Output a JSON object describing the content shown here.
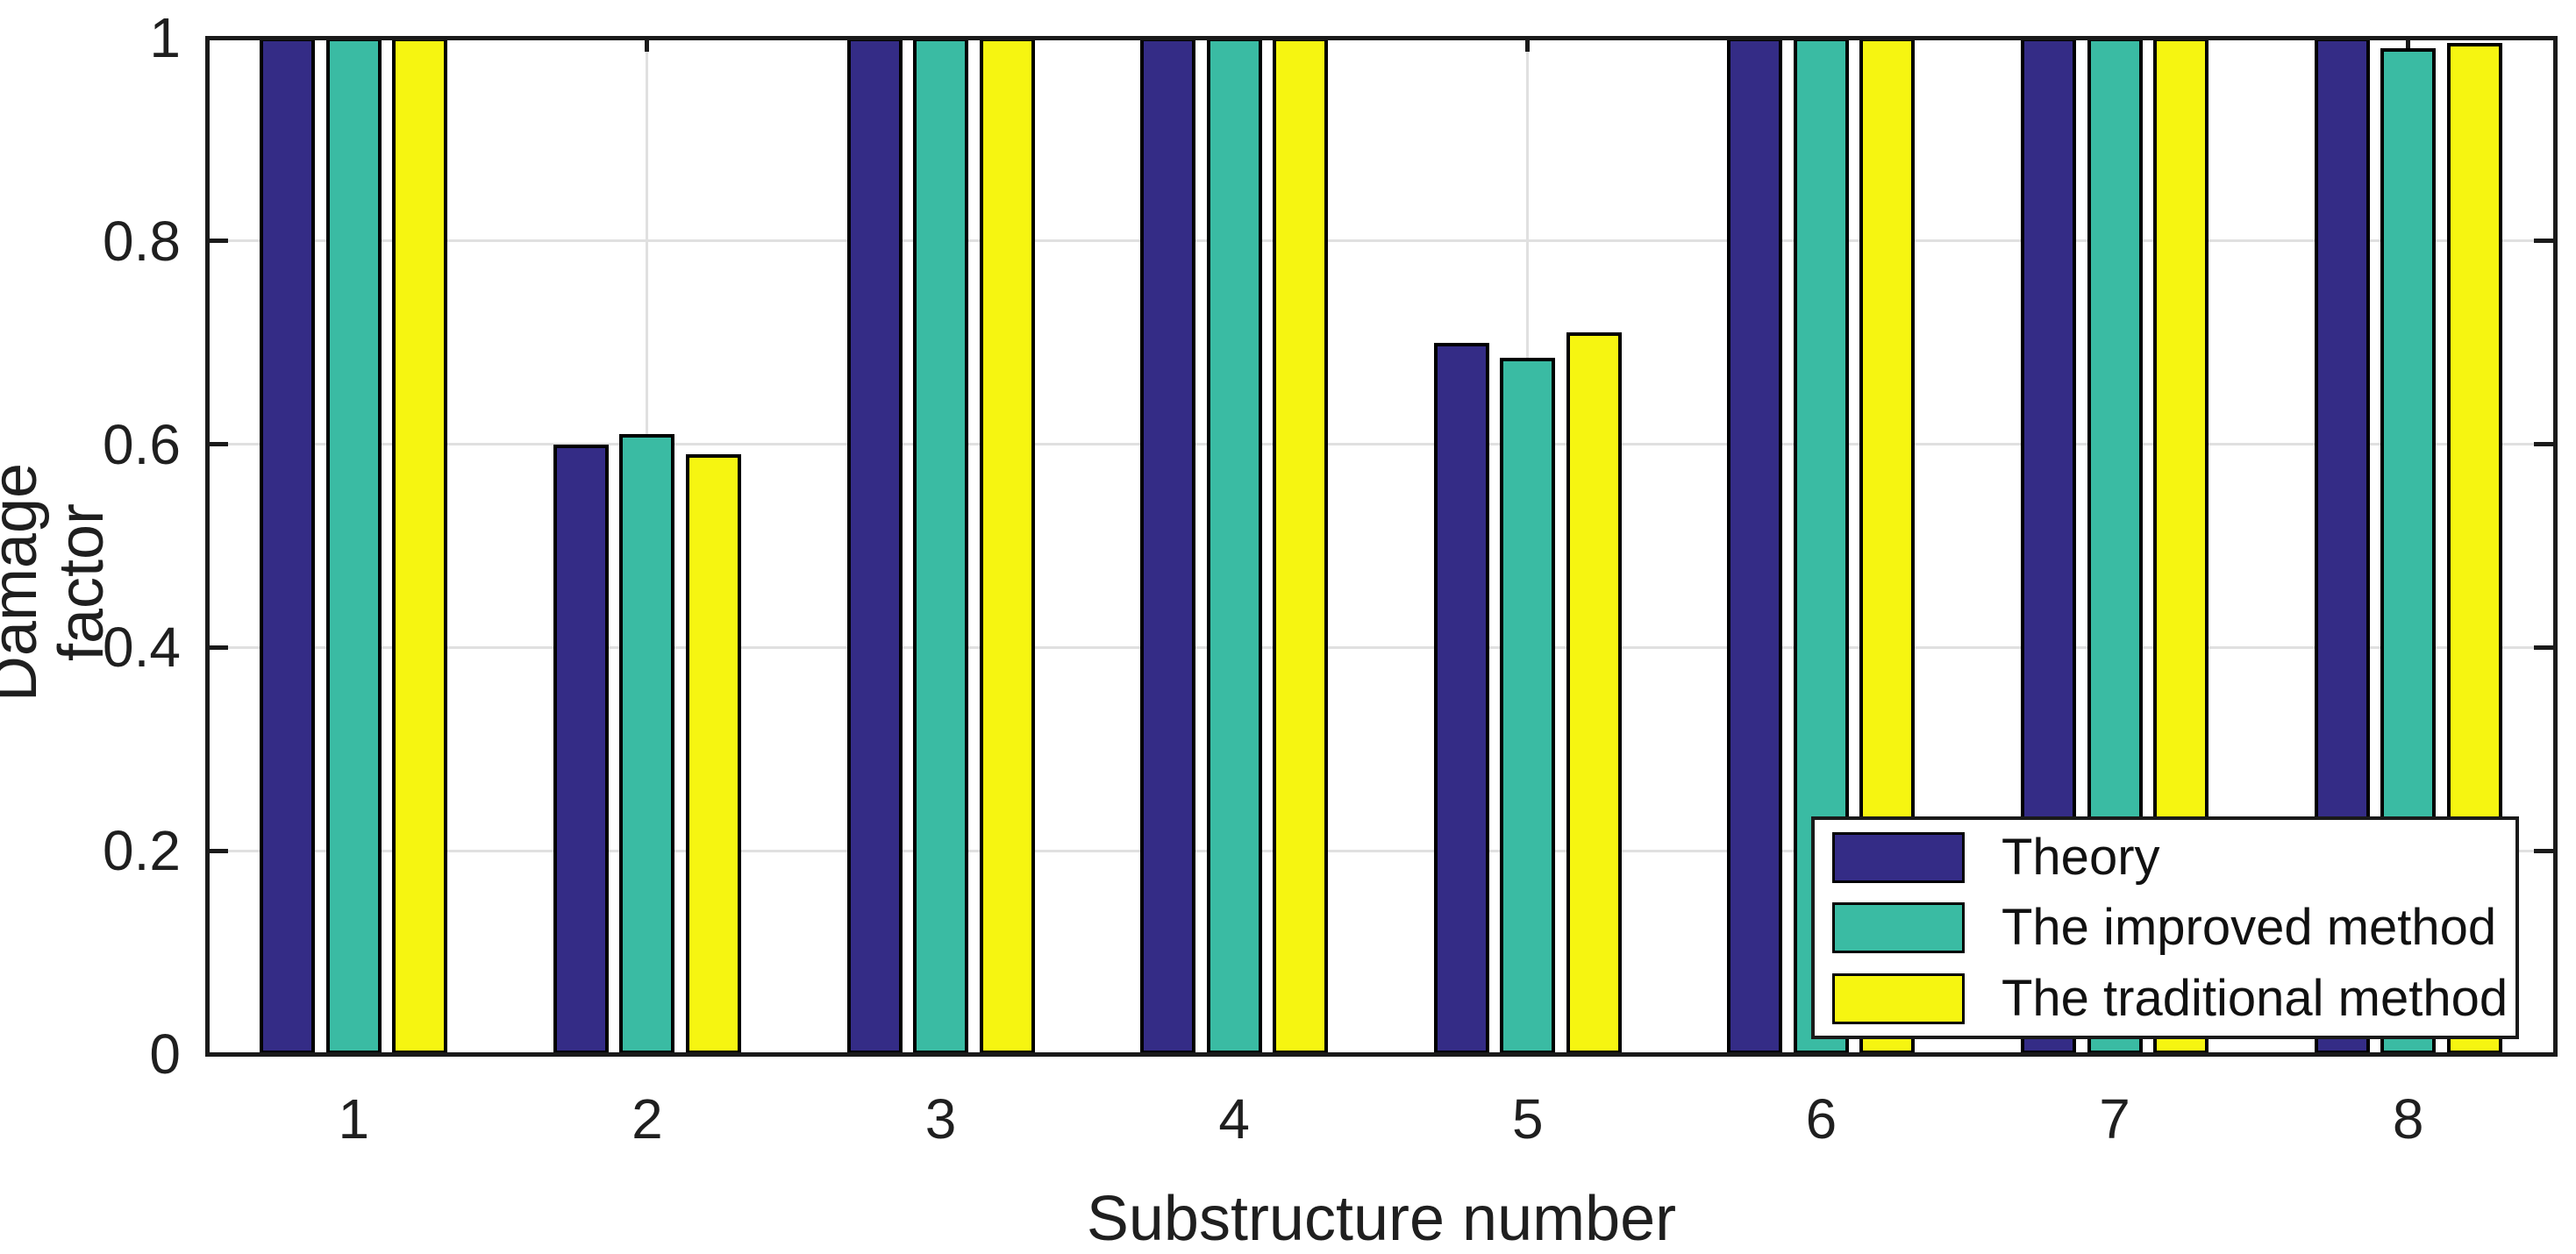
{
  "chart_data": {
    "type": "bar",
    "title": "",
    "xlabel": "Substructure number",
    "ylabel": "Damage factor",
    "categories": [
      "1",
      "2",
      "3",
      "4",
      "5",
      "6",
      "7",
      "8"
    ],
    "series": [
      {
        "name": "Theory",
        "color": "#342C86",
        "values": [
          1,
          0.6,
          1,
          1,
          0.7,
          1,
          1,
          1
        ]
      },
      {
        "name": "The improved method",
        "color": "#3ABBA3",
        "values": [
          1,
          0.61,
          1,
          1,
          0.685,
          1,
          1,
          0.99
        ]
      },
      {
        "name": "The traditional method",
        "color": "#F6F511",
        "values": [
          1,
          0.59,
          1,
          1,
          0.71,
          1,
          1,
          0.995
        ]
      }
    ],
    "ylim": [
      0,
      1
    ],
    "yticks": {
      "values": [
        0,
        0.2,
        0.4,
        0.6,
        0.8,
        1
      ],
      "labels": [
        "0",
        "0.2",
        "0.4",
        "0.6",
        "0.8",
        "1"
      ]
    },
    "grid": "on",
    "legend_position": "south-east-inside",
    "bar_edge_color": "#000000",
    "axis_color": "#1a1a1a",
    "grid_color": "#e0e0e0",
    "background_color": "#ffffff"
  }
}
